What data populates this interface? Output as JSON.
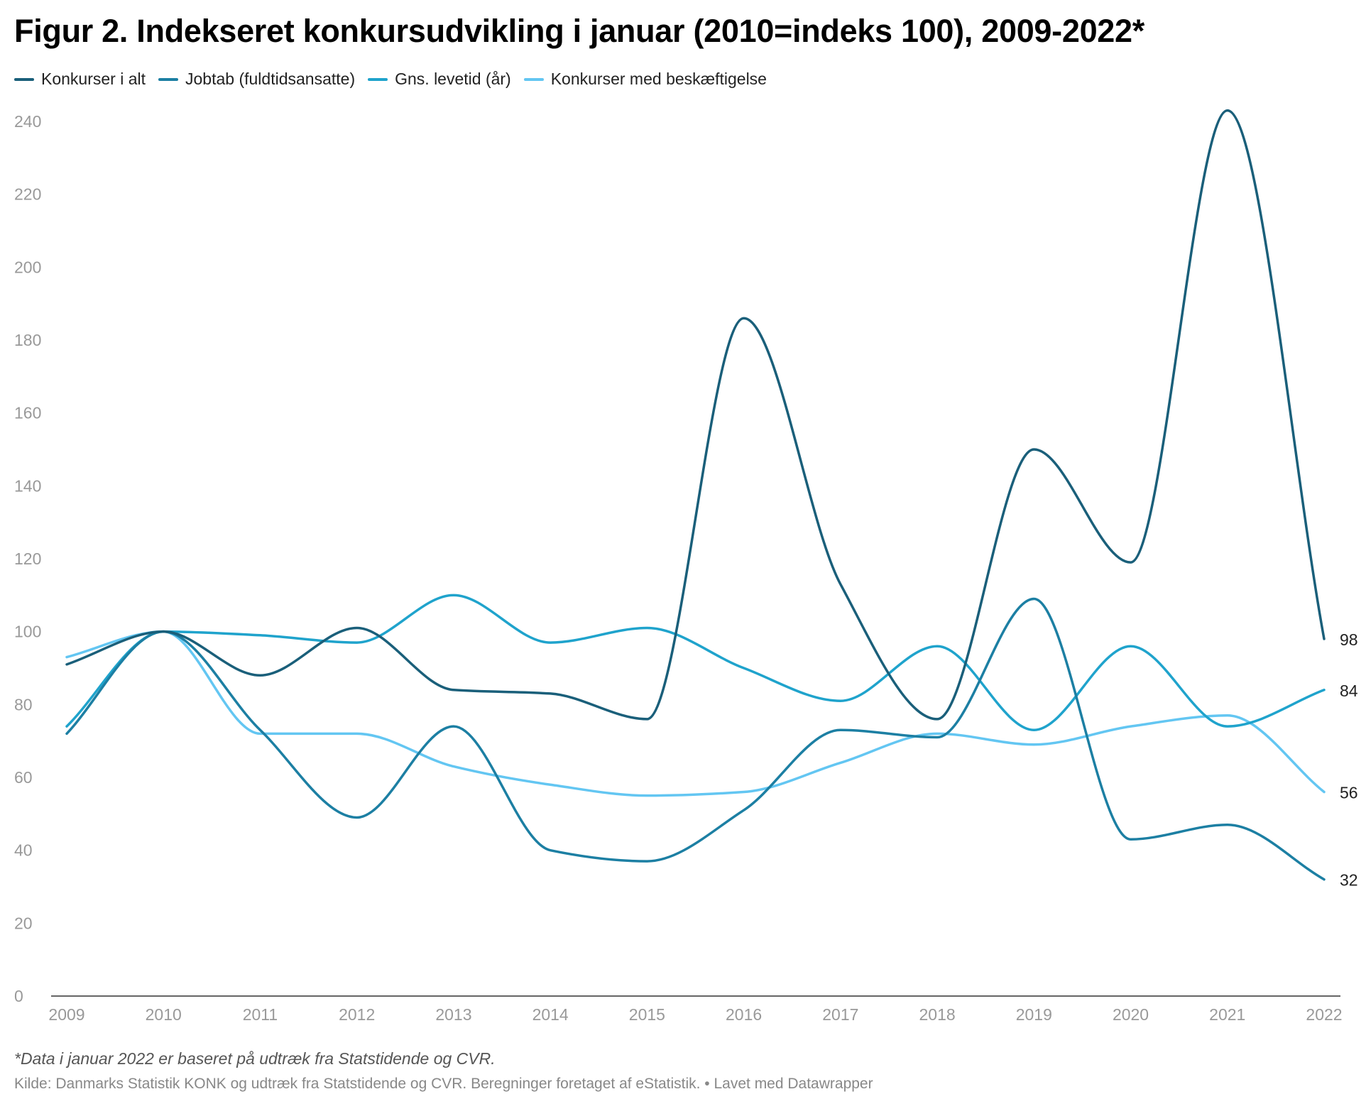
{
  "chart_data": {
    "type": "line",
    "title": "Figur 2. Indekseret konkursudvikling i januar (2010=indeks 100), 2009-2022*",
    "x": [
      "2009",
      "2010",
      "2011",
      "2012",
      "2013",
      "2014",
      "2015",
      "2016",
      "2017",
      "2018",
      "2019",
      "2020",
      "2021",
      "2022"
    ],
    "ylim": [
      0,
      240
    ],
    "yticks": [
      0,
      20,
      40,
      60,
      80,
      100,
      120,
      140,
      160,
      180,
      200,
      220,
      240
    ],
    "grid": false,
    "legend": "top-left",
    "series": [
      {
        "name": "Konkurser i alt",
        "color": "#1a5f7a",
        "values": [
          91,
          100,
          88,
          101,
          84,
          83,
          76,
          186,
          113,
          76,
          150,
          119,
          243,
          98
        ],
        "end_label": "98"
      },
      {
        "name": "Jobtab (fuldtidsansatte)",
        "color": "#1c7fa3",
        "values": [
          72,
          100,
          73,
          49,
          74,
          40,
          37,
          51,
          73,
          71,
          109,
          43,
          47,
          32
        ],
        "end_label": "32"
      },
      {
        "name": "Gns. levetid (år)",
        "color": "#1fa3cc",
        "values": [
          74,
          100,
          99,
          97,
          110,
          97,
          101,
          90,
          81,
          96,
          73,
          96,
          74,
          84
        ],
        "end_label": "84"
      },
      {
        "name": "Konkurser med beskæftigelse",
        "color": "#63c6f2",
        "values": [
          93,
          100,
          72,
          72,
          63,
          58,
          55,
          56,
          64,
          72,
          69,
          74,
          77,
          56
        ],
        "end_label": "56"
      }
    ]
  },
  "footnote": "*Data i januar 2022 er baseret på udtræk fra Statstidende og CVR.",
  "source": "Kilde: Danmarks Statistik KONK og udtræk fra Statstidende og CVR. Beregninger foretaget af eStatistik. • Lavet med Datawrapper"
}
